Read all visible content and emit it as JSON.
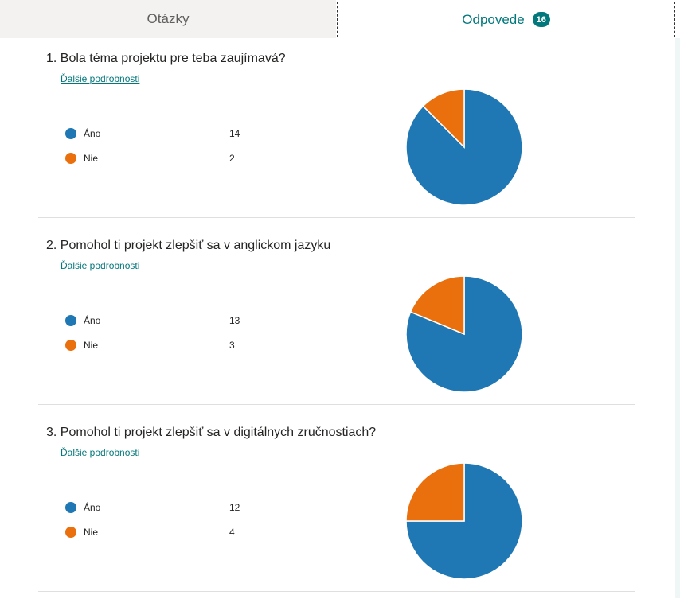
{
  "tabs": {
    "questions_label": "Otázky",
    "responses_label": "Odpovede",
    "responses_count": "16"
  },
  "colors": {
    "yes": "#1f77b4",
    "no": "#ea700d",
    "accent": "#03787c"
  },
  "questions": [
    {
      "title": "1.  Bola téma projektu pre teba zaujímavá?",
      "details_link": "Ďalšie podrobnosti",
      "options": [
        {
          "label": "Áno",
          "count": "14"
        },
        {
          "label": "Nie",
          "count": "2"
        }
      ]
    },
    {
      "title": "2.  Pomohol ti projekt zlepšiť sa v anglickom jazyku",
      "details_link": "Ďalšie podrobnosti",
      "options": [
        {
          "label": "Áno",
          "count": "13"
        },
        {
          "label": "Nie",
          "count": "3"
        }
      ]
    },
    {
      "title": "3.  Pomohol ti projekt zlepšiť sa v digitálnych zručnostiach?",
      "details_link": "Ďalšie podrobnosti",
      "options": [
        {
          "label": "Áno",
          "count": "12"
        },
        {
          "label": "Nie",
          "count": "4"
        }
      ]
    }
  ],
  "chart_data": [
    {
      "type": "pie",
      "categories": [
        "Áno",
        "Nie"
      ],
      "values": [
        14,
        2
      ]
    },
    {
      "type": "pie",
      "categories": [
        "Áno",
        "Nie"
      ],
      "values": [
        13,
        3
      ]
    },
    {
      "type": "pie",
      "categories": [
        "Áno",
        "Nie"
      ],
      "values": [
        12,
        4
      ]
    }
  ]
}
